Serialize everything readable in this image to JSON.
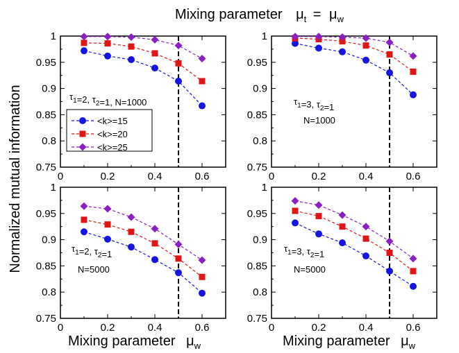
{
  "figure": {
    "suptitle": "Mixing parameter",
    "suptitle_symbol_lhs": "μ",
    "suptitle_sub_lhs": "t",
    "suptitle_eq": "=",
    "suptitle_symbol_rhs": "μ",
    "suptitle_sub_rhs": "w",
    "ylabel": "Normalized mutual information",
    "xlabel": "Mixing parameter",
    "xlabel_symbol": "μ",
    "xlabel_sub": "w",
    "legend": {
      "entries": [
        "<k>=15",
        "<k>=20",
        "<k>=25"
      ],
      "placement": "panel-1 lower-left"
    },
    "colors": {
      "k15": "#1515e0",
      "k20": "#e01515",
      "k25": "#8a1fc4",
      "axis": "#000000",
      "threshold": "#000000"
    },
    "markers": {
      "k15": "circle",
      "k20": "square",
      "k25": "diamond"
    }
  },
  "chart_data": [
    {
      "type": "line",
      "x": [
        0.1,
        0.2,
        0.3,
        0.4,
        0.5,
        0.6
      ],
      "xlim": [
        0,
        0.7
      ],
      "ylim": [
        0.75,
        1.0
      ],
      "xticks": [
        "0",
        "0.2",
        "0.4",
        "0.6"
      ],
      "yticks": [
        "0.75",
        "0.8",
        "0.85",
        "0.9",
        "0.95",
        "1"
      ],
      "vline": 0.5,
      "annotations": [
        "τ1=2, τ2=1, N=1000"
      ],
      "series": [
        {
          "name": "<k>=15",
          "values": [
            0.972,
            0.962,
            0.955,
            0.939,
            0.914,
            0.867
          ]
        },
        {
          "name": "<k>=20",
          "values": [
            0.987,
            0.986,
            0.98,
            0.967,
            0.948,
            0.914
          ]
        },
        {
          "name": "<k>=25",
          "values": [
            0.999,
            0.999,
            0.998,
            0.993,
            0.982,
            0.957
          ]
        }
      ]
    },
    {
      "type": "line",
      "x": [
        0.1,
        0.2,
        0.3,
        0.4,
        0.5,
        0.6
      ],
      "xlim": [
        0,
        0.7
      ],
      "ylim": [
        0.75,
        1.0
      ],
      "xticks": [
        "0",
        "0.2",
        "0.4",
        "0.6"
      ],
      "yticks": [
        "0.75",
        "0.8",
        "0.85",
        "0.9",
        "0.95",
        "1"
      ],
      "vline": 0.5,
      "annotations": [
        "τ1=3, τ2=1",
        "N=1000"
      ],
      "series": [
        {
          "name": "<k>=15",
          "values": [
            0.986,
            0.977,
            0.97,
            0.954,
            0.93,
            0.888
          ]
        },
        {
          "name": "<k>=20",
          "values": [
            0.996,
            0.994,
            0.99,
            0.982,
            0.965,
            0.932
          ]
        },
        {
          "name": "<k>=25",
          "values": [
            0.999,
            0.999,
            0.998,
            0.996,
            0.988,
            0.962
          ]
        }
      ]
    },
    {
      "type": "line",
      "x": [
        0.1,
        0.2,
        0.3,
        0.4,
        0.5,
        0.6
      ],
      "xlim": [
        0,
        0.7
      ],
      "ylim": [
        0.75,
        1.0
      ],
      "xticks": [
        "0",
        "0.2",
        "0.4",
        "0.6"
      ],
      "yticks": [
        "0.75",
        "0.8",
        "0.85",
        "0.9",
        "0.95",
        "1"
      ],
      "vline": 0.5,
      "annotations": [
        "τ1=2, τ2=1",
        "N=5000"
      ],
      "series": [
        {
          "name": "<k>=15",
          "values": [
            0.915,
            0.901,
            0.886,
            0.862,
            0.837,
            0.798
          ]
        },
        {
          "name": "<k>=20",
          "values": [
            0.938,
            0.929,
            0.915,
            0.893,
            0.864,
            0.829
          ]
        },
        {
          "name": "<k>=25",
          "values": [
            0.964,
            0.959,
            0.943,
            0.921,
            0.891,
            0.861
          ]
        }
      ]
    },
    {
      "type": "line",
      "x": [
        0.1,
        0.2,
        0.3,
        0.4,
        0.5,
        0.6
      ],
      "xlim": [
        0,
        0.7
      ],
      "ylim": [
        0.75,
        1.0
      ],
      "xticks": [
        "0",
        "0.2",
        "0.4",
        "0.6"
      ],
      "yticks": [
        "0.75",
        "0.8",
        "0.85",
        "0.9",
        "0.95",
        "1"
      ],
      "vline": 0.5,
      "annotations": [
        "τ1=3, τ2=1",
        "N=5000"
      ],
      "series": [
        {
          "name": "<k>=15",
          "values": [
            0.932,
            0.911,
            0.894,
            0.869,
            0.84,
            0.811
          ]
        },
        {
          "name": "<k>=20",
          "values": [
            0.955,
            0.945,
            0.925,
            0.902,
            0.875,
            0.84
          ]
        },
        {
          "name": "<k>=25",
          "values": [
            0.974,
            0.966,
            0.947,
            0.925,
            0.897,
            0.864
          ]
        }
      ]
    }
  ]
}
